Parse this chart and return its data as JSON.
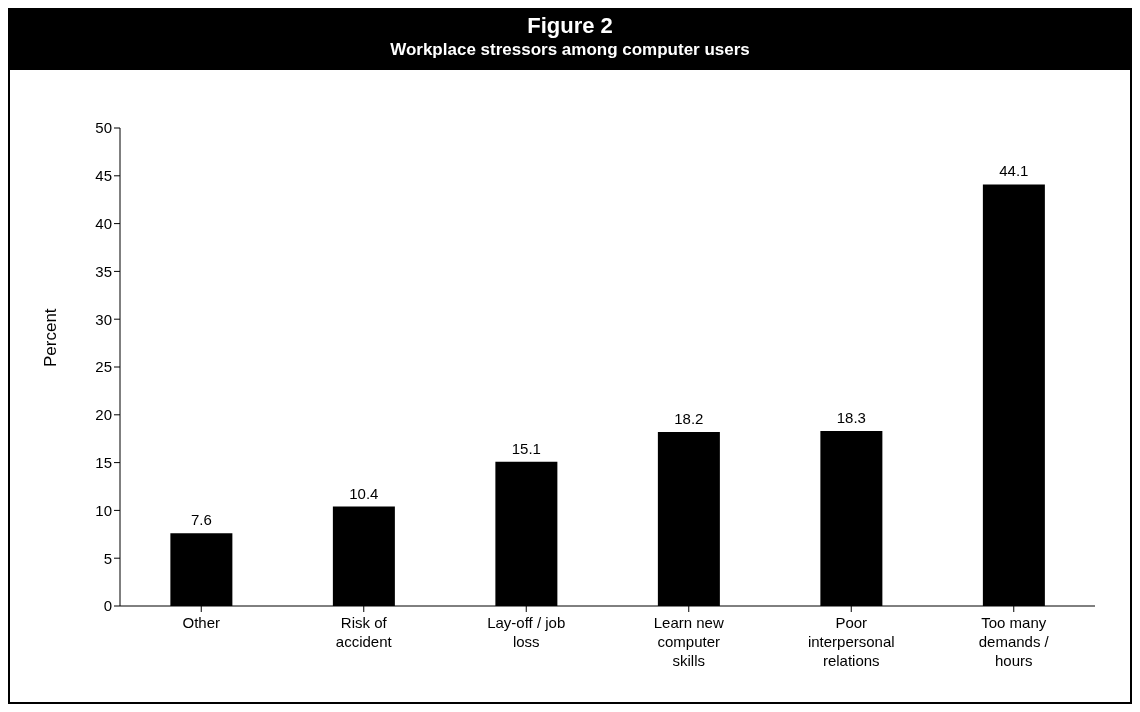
{
  "chart_data": {
    "type": "bar",
    "title": "Figure 2",
    "subtitle": "Workplace stressors among computer users",
    "ylabel": "Percent",
    "categories": [
      "Other",
      "Risk of accident",
      "Lay-off / job loss",
      "Learn new computer skills",
      "Poor interpersonal relations",
      "Too many demands / hours"
    ],
    "values": [
      7.6,
      10.4,
      15.1,
      18.2,
      18.3,
      44.1
    ],
    "color": "#000000",
    "ylim": [
      0,
      50
    ],
    "yticks": [
      0,
      5,
      10,
      15,
      20,
      25,
      30,
      35,
      40,
      45,
      50
    ],
    "grid": false,
    "legend": false,
    "data_labels": true
  }
}
